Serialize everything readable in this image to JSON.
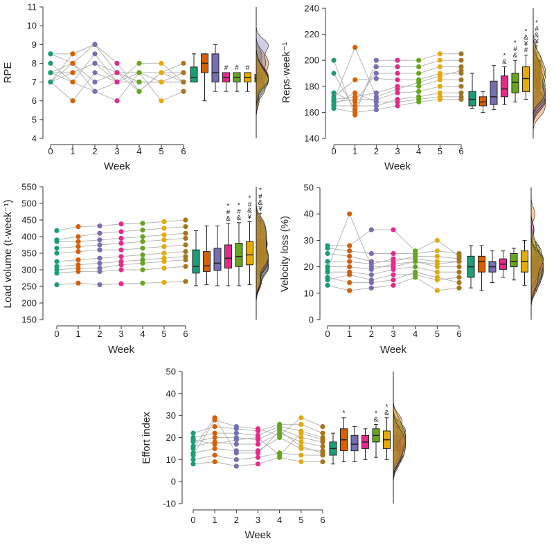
{
  "palette": [
    "#1b9e77",
    "#d95f02",
    "#7570b3",
    "#e7298a",
    "#66a61e",
    "#e6ab02",
    "#a6761d"
  ],
  "chart_data": [
    {
      "id": "rpe",
      "type": "raincloud",
      "ylabel": "RPE",
      "xlabel": "Week",
      "ylim": [
        4,
        11
      ],
      "yticks": [
        4,
        5,
        6,
        7,
        8,
        9,
        10,
        11
      ],
      "xticks": [
        0,
        1,
        2,
        3,
        4,
        5,
        6
      ],
      "series": [
        [
          7,
          7,
          7.5,
          7.5,
          8,
          7,
          8.5,
          8.5,
          7,
          7.5
        ],
        [
          8,
          8.5,
          7,
          7.5,
          7,
          6,
          8,
          8.5,
          7.5,
          8
        ],
        [
          9,
          9,
          8.5,
          8,
          6.5,
          7.5,
          7,
          9,
          8,
          6.5
        ],
        [
          7.5,
          7.5,
          7,
          7.5,
          6,
          7,
          7.5,
          8,
          7,
          7
        ],
        [
          7,
          7.5,
          7,
          6.5,
          7.5,
          8,
          7,
          6.5,
          7.5,
          7
        ],
        [
          7,
          7.5,
          7,
          7.5,
          6,
          8,
          7,
          7.5,
          7,
          7
        ],
        [
          7,
          7,
          7.5,
          8,
          6.5,
          7,
          7,
          7.5,
          7,
          7.5
        ]
      ],
      "boxes": [
        {
          "min": 7,
          "q1": 7,
          "med": 7.25,
          "q3": 7.8,
          "max": 8.5,
          "sig": ""
        },
        {
          "min": 6,
          "q1": 7.5,
          "med": 8,
          "q3": 8.5,
          "max": 8.5,
          "sig": ""
        },
        {
          "min": 6.5,
          "q1": 7,
          "med": 7.5,
          "q3": 8.5,
          "max": 9,
          "sig": ""
        },
        {
          "min": 6.5,
          "q1": 7,
          "med": 7.25,
          "q3": 7.5,
          "max": 7.5,
          "sig": "#"
        },
        {
          "min": 6.5,
          "q1": 7,
          "med": 7.25,
          "q3": 7.5,
          "max": 7.5,
          "sig": "#"
        },
        {
          "min": 6.5,
          "q1": 7,
          "med": 7.25,
          "q3": 7.5,
          "max": 7.5,
          "sig": "#"
        },
        {
          "min": 6.5,
          "q1": 7,
          "med": 7.2,
          "q3": 7.4,
          "max": 7.5,
          "sig": "# &"
        }
      ]
    },
    {
      "id": "reps",
      "type": "raincloud",
      "ylabel": "Reps·week⁻¹",
      "xlabel": "Week",
      "ylim": [
        140,
        240
      ],
      "yticks": [
        140,
        160,
        180,
        200,
        220,
        240
      ],
      "xticks": [
        0,
        1,
        2,
        3,
        4,
        5,
        6
      ],
      "series": [
        [
          163,
          165,
          168,
          170,
          172,
          175,
          190,
          200,
          166,
          169
        ],
        [
          160,
          165,
          170,
          172,
          185,
          168,
          162,
          158,
          175,
          210
        ],
        [
          162,
          165,
          170,
          175,
          186,
          190,
          195,
          200,
          168,
          172
        ],
        [
          165,
          170,
          175,
          180,
          185,
          190,
          195,
          200,
          168,
          178
        ],
        [
          168,
          172,
          176,
          180,
          185,
          190,
          195,
          200,
          170,
          183
        ],
        [
          170,
          175,
          180,
          185,
          190,
          195,
          200,
          205,
          172,
          188
        ],
        [
          170,
          175,
          180,
          185,
          190,
          195,
          200,
          205,
          172,
          192
        ]
      ],
      "boxes": [
        {
          "min": 163,
          "q1": 165,
          "med": 170,
          "q3": 176,
          "max": 190,
          "sig": ""
        },
        {
          "min": 160,
          "q1": 165,
          "med": 168,
          "q3": 172,
          "max": 176,
          "sig": ""
        },
        {
          "min": 162,
          "q1": 166,
          "med": 172,
          "q3": 184,
          "max": 196,
          "sig": ""
        },
        {
          "min": 166,
          "q1": 172,
          "med": 178,
          "q3": 188,
          "max": 195,
          "sig": "* &"
        },
        {
          "min": 168,
          "q1": 175,
          "med": 183,
          "q3": 190,
          "max": 200,
          "sig": "* # &"
        },
        {
          "min": 170,
          "q1": 176,
          "med": 186,
          "q3": 195,
          "max": 204,
          "sig": "* & ¥ #"
        },
        {
          "min": 172,
          "q1": 178,
          "med": 190,
          "q3": 200,
          "max": 206,
          "sig": "* # & ¥ †"
        }
      ]
    },
    {
      "id": "load",
      "type": "raincloud",
      "ylabel": "Load volume (t·week⁻¹)",
      "xlabel": "Week",
      "ylim": [
        150,
        550
      ],
      "yticks": [
        150,
        200,
        250,
        300,
        350,
        400,
        450,
        500,
        550
      ],
      "xticks": [
        0,
        1,
        2,
        3,
        4,
        5,
        6
      ],
      "series": [
        [
          255,
          290,
          300,
          310,
          325,
          350,
          365,
          385,
          390,
          418
        ],
        [
          260,
          295,
          305,
          315,
          330,
          355,
          370,
          385,
          400,
          430
        ],
        [
          255,
          295,
          305,
          320,
          335,
          360,
          375,
          390,
          410,
          432
        ],
        [
          258,
          300,
          315,
          325,
          340,
          360,
          380,
          395,
          415,
          438
        ],
        [
          260,
          300,
          320,
          330,
          345,
          365,
          385,
          400,
          420,
          440
        ],
        [
          262,
          305,
          325,
          335,
          350,
          370,
          390,
          405,
          425,
          445
        ],
        [
          265,
          310,
          330,
          340,
          355,
          375,
          395,
          410,
          430,
          450
        ]
      ],
      "boxes": [
        {
          "min": 252,
          "q1": 290,
          "med": 310,
          "q3": 360,
          "max": 418,
          "sig": ""
        },
        {
          "min": 255,
          "q1": 295,
          "med": 312,
          "q3": 355,
          "max": 432,
          "sig": ""
        },
        {
          "min": 252,
          "q1": 298,
          "med": 320,
          "q3": 365,
          "max": 432,
          "sig": ""
        },
        {
          "min": 252,
          "q1": 305,
          "med": 335,
          "q3": 375,
          "max": 440,
          "sig": "* # &"
        },
        {
          "min": 252,
          "q1": 310,
          "med": 340,
          "q3": 380,
          "max": 442,
          "sig": "* # &"
        },
        {
          "min": 255,
          "q1": 315,
          "med": 345,
          "q3": 385,
          "max": 445,
          "sig": "* # & ¥"
        },
        {
          "min": 258,
          "q1": 320,
          "med": 350,
          "q3": 390,
          "max": 450,
          "sig": "* # & ¥ †"
        }
      ]
    },
    {
      "id": "vloss",
      "type": "raincloud",
      "ylabel": "Velocity loss (%)",
      "xlabel": "Week",
      "ylim": [
        0,
        50
      ],
      "yticks": [
        0,
        10,
        20,
        30,
        40,
        50
      ],
      "xticks": [
        0,
        1,
        2,
        3,
        4,
        5,
        6
      ],
      "series": [
        [
          13,
          16,
          18,
          20,
          22,
          25,
          27,
          28,
          15,
          19
        ],
        [
          11,
          14,
          18,
          20,
          22,
          24,
          26,
          28,
          17,
          40
        ],
        [
          12,
          14,
          17,
          19,
          21,
          22,
          25,
          34,
          15,
          20
        ],
        [
          13,
          15,
          19,
          21,
          23,
          22,
          25,
          34,
          17,
          20
        ],
        [
          16,
          18,
          20,
          22,
          23,
          24,
          25,
          26,
          17,
          22
        ],
        [
          11,
          16,
          18,
          20,
          22,
          24,
          26,
          30,
          15,
          21
        ],
        [
          12,
          14,
          18,
          20,
          22,
          23,
          25,
          24,
          16,
          22
        ]
      ],
      "boxes": [
        {
          "min": 12,
          "q1": 16,
          "med": 20,
          "q3": 24,
          "max": 28,
          "sig": ""
        },
        {
          "min": 11,
          "q1": 18,
          "med": 22,
          "q3": 24,
          "max": 28,
          "sig": ""
        },
        {
          "min": 14,
          "q1": 18,
          "med": 20,
          "q3": 22,
          "max": 26,
          "sig": ""
        },
        {
          "min": 16,
          "q1": 19,
          "med": 21,
          "q3": 23,
          "max": 26,
          "sig": ""
        },
        {
          "min": 15,
          "q1": 20,
          "med": 22,
          "q3": 25,
          "max": 27,
          "sig": ""
        },
        {
          "min": 13,
          "q1": 18,
          "med": 22,
          "q3": 26,
          "max": 30,
          "sig": ""
        },
        {
          "min": 11,
          "q1": 16,
          "med": 20,
          "q3": 24,
          "max": 28,
          "sig": ""
        }
      ]
    },
    {
      "id": "effort",
      "type": "raincloud",
      "ylabel": "Effort index",
      "xlabel": "Week",
      "ylim": [
        -10,
        50
      ],
      "yticks": [
        -10,
        0,
        10,
        20,
        30,
        40,
        50
      ],
      "xticks": [
        0,
        1,
        2,
        3,
        4,
        5,
        6
      ],
      "series": [
        [
          8,
          10,
          13,
          16,
          18,
          20,
          22,
          12,
          15,
          19
        ],
        [
          9,
          12,
          15,
          18,
          20,
          22,
          25,
          28,
          29,
          17
        ],
        [
          7,
          10,
          14,
          17,
          20,
          22,
          24,
          25,
          13,
          19
        ],
        [
          8,
          11,
          14,
          17,
          19,
          21,
          23,
          24,
          13,
          20
        ],
        [
          11,
          13,
          20,
          22,
          24,
          25,
          26,
          21,
          23,
          12
        ],
        [
          9,
          12,
          15,
          18,
          20,
          23,
          26,
          29,
          16,
          22
        ],
        [
          9,
          12,
          14,
          16,
          18,
          20,
          22,
          25,
          13,
          19
        ]
      ],
      "boxes": [
        {
          "min": 8,
          "q1": 12,
          "med": 15,
          "q3": 18,
          "max": 22,
          "sig": ""
        },
        {
          "min": 9,
          "q1": 14,
          "med": 19,
          "q3": 24,
          "max": 29,
          "sig": "*"
        },
        {
          "min": 9,
          "q1": 14,
          "med": 17,
          "q3": 21,
          "max": 25,
          "sig": ""
        },
        {
          "min": 10,
          "q1": 15,
          "med": 18,
          "q3": 21,
          "max": 24,
          "sig": ""
        },
        {
          "min": 11,
          "q1": 18,
          "med": 21,
          "q3": 24,
          "max": 26,
          "sig": "* &"
        },
        {
          "min": 10,
          "q1": 15,
          "med": 19,
          "q3": 23,
          "max": 29,
          "sig": "* &"
        },
        {
          "min": 10,
          "q1": 14,
          "med": 18,
          "q3": 21,
          "max": 25,
          "sig": "*"
        }
      ]
    }
  ]
}
